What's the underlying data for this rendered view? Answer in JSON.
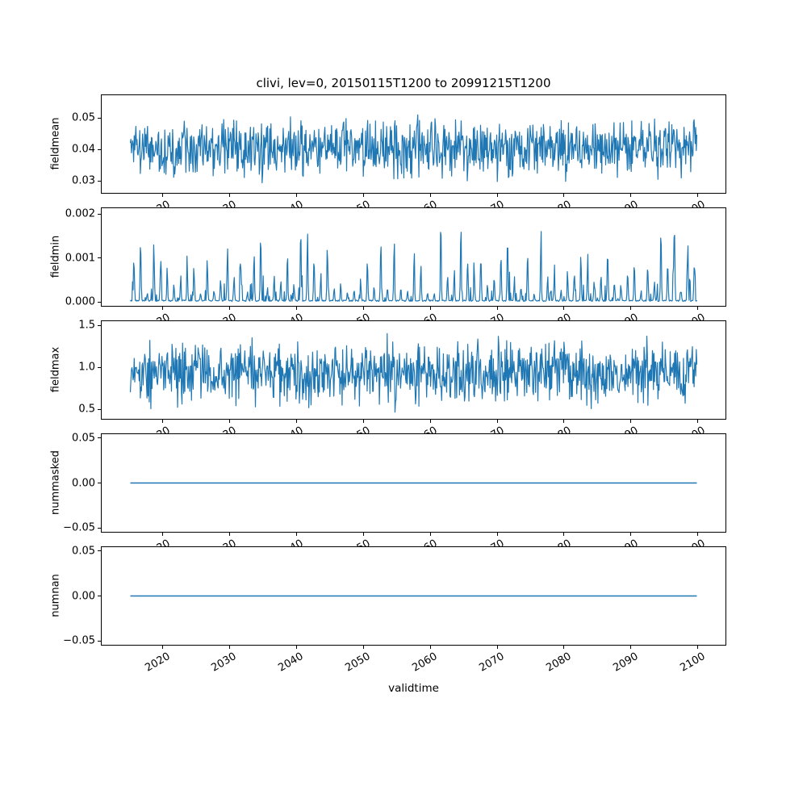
{
  "title": "clivi, lev=0, 20150115T1200 to 20991215T1200",
  "xlabel": "validtime",
  "line_color": "#1f77b4",
  "chart_data": {
    "type": "line",
    "title": "clivi, lev=0, 20150115T1200 to 20991215T1200",
    "xlabel": "validtime",
    "legend": "none",
    "grid": false,
    "x": {
      "start": 2015.042,
      "end": 2099.958,
      "points": 1020,
      "cadence": "monthly",
      "xlim": [
        2010.75,
        2104.25
      ],
      "ticks": [
        {
          "v": 2020,
          "label": "2020"
        },
        {
          "v": 2030,
          "label": "2030"
        },
        {
          "v": 2040,
          "label": "2040"
        },
        {
          "v": 2050,
          "label": "2050"
        },
        {
          "v": 2060,
          "label": "2060"
        },
        {
          "v": 2070,
          "label": "2070"
        },
        {
          "v": 2080,
          "label": "2080"
        },
        {
          "v": 2090,
          "label": "2090"
        },
        {
          "v": 2100,
          "label": "2100"
        }
      ]
    },
    "subplots": [
      {
        "name": "fieldmean",
        "ylabel": "fieldmean",
        "ylim": [
          0.0259,
          0.0575
        ],
        "yticks": [
          {
            "v": 0.05,
            "label": "0.05"
          },
          {
            "v": 0.04,
            "label": "0.04"
          },
          {
            "v": 0.03,
            "label": "0.03"
          }
        ],
        "series": {
          "kind": "noisy",
          "mean": 0.0405,
          "spread": 0.0135,
          "approx_min": 0.0275,
          "approx_max": 0.057,
          "seed": 11
        }
      },
      {
        "name": "fieldmin",
        "ylabel": "fieldmin",
        "ylim": [
          -0.000103,
          0.002155
        ],
        "yticks": [
          {
            "v": 0.002,
            "label": "0.002"
          },
          {
            "v": 0.001,
            "label": "0.001"
          },
          {
            "v": 0.0,
            "label": "0.000"
          }
        ],
        "series": {
          "kind": "annual_spikes",
          "base": 3e-05,
          "peak_min": 0.0002,
          "peak_max": 0.00205,
          "approx_min": 0.0,
          "approx_max": 0.00205,
          "seed": 23
        }
      },
      {
        "name": "fieldmax",
        "ylabel": "fieldmax",
        "ylim": [
          0.38,
          1.56
        ],
        "yticks": [
          {
            "v": 1.5,
            "label": "1.5"
          },
          {
            "v": 1.0,
            "label": "1.0"
          },
          {
            "v": 0.5,
            "label": "0.5"
          }
        ],
        "series": {
          "kind": "noisy",
          "mean": 0.93,
          "spread": 0.52,
          "approx_min": 0.42,
          "approx_max": 1.52,
          "seed": 37
        }
      },
      {
        "name": "nummasked",
        "ylabel": "nummasked",
        "ylim": [
          -0.055,
          0.055
        ],
        "yticks": [
          {
            "v": 0.05,
            "label": "0.05"
          },
          {
            "v": 0.0,
            "label": "0.00"
          },
          {
            "v": -0.05,
            "label": "−0.05"
          }
        ],
        "series": {
          "kind": "constant",
          "value": 0
        }
      },
      {
        "name": "numnan",
        "ylabel": "numnan",
        "ylim": [
          -0.055,
          0.055
        ],
        "yticks": [
          {
            "v": 0.05,
            "label": "0.05"
          },
          {
            "v": 0.0,
            "label": "0.00"
          },
          {
            "v": -0.05,
            "label": "−0.05"
          }
        ],
        "series": {
          "kind": "constant",
          "value": 0
        }
      }
    ]
  }
}
